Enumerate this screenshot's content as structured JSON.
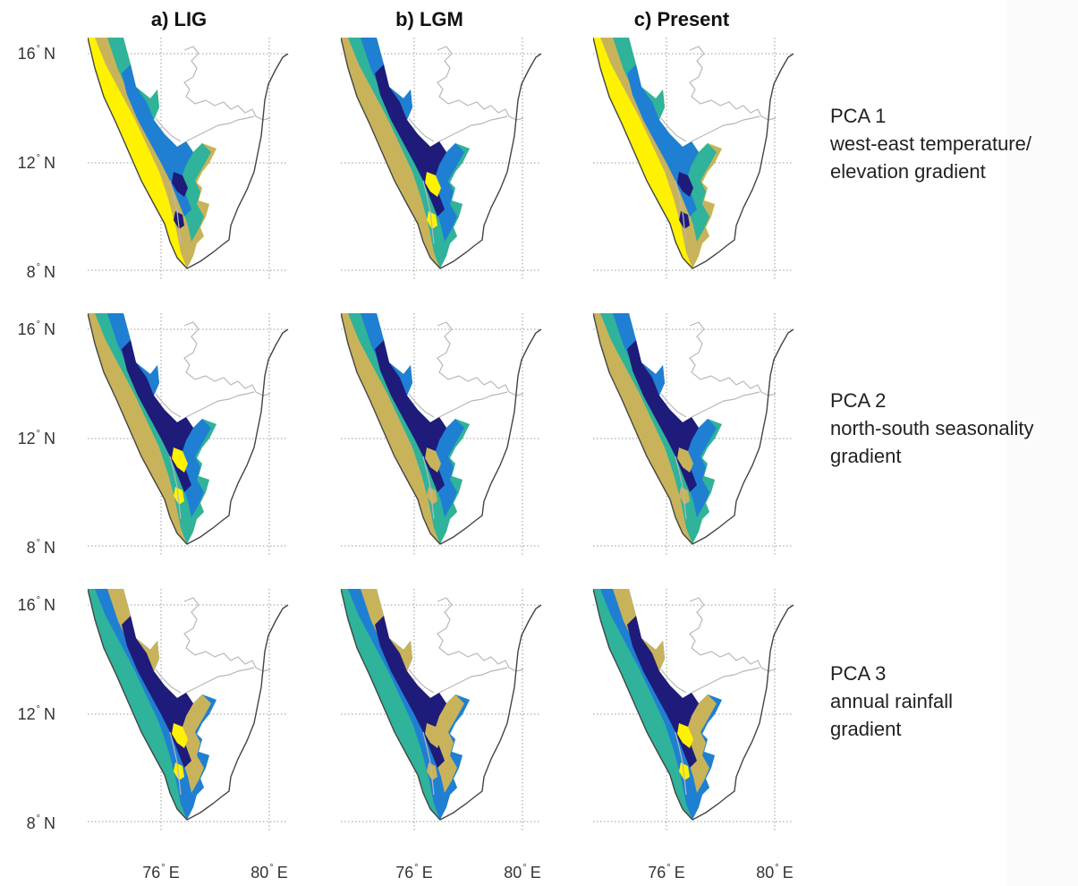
{
  "column_titles": [
    "a) LIG",
    "b) LGM",
    "c) Present"
  ],
  "lat_labels": [
    {
      "deg": "16",
      "hem": "N"
    },
    {
      "deg": "12",
      "hem": "N"
    },
    {
      "deg": "8",
      "hem": "N"
    }
  ],
  "lon_labels": [
    {
      "deg": "76",
      "hem": "E"
    },
    {
      "deg": "80",
      "hem": "E"
    }
  ],
  "rows": [
    {
      "title": "PCA 1",
      "desc_lines": [
        "west-east temperature/",
        "elevation gradient"
      ]
    },
    {
      "title": "PCA 2",
      "desc_lines": [
        "north-south seasonality",
        "gradient"
      ]
    },
    {
      "title": "PCA 3",
      "desc_lines": [
        "annual rainfall",
        "gradient"
      ]
    }
  ],
  "palette": {
    "class_1": "#fff200",
    "class_2": "#c9b35a",
    "class_3": "#2fb39a",
    "class_4": "#1f7fd3",
    "class_5": "#1e1b7a",
    "coastline": "#444444",
    "state_boundary": "#b8b8b8",
    "graticule": "#9a9a9a"
  },
  "panels": [
    [
      {
        "bands": [
          "class_1",
          "class_2",
          "class_3",
          "class_4",
          "class_5"
        ]
      },
      {
        "bands": [
          "class_2",
          "class_3",
          "class_4",
          "class_5",
          "class_1"
        ]
      },
      {
        "bands": [
          "class_1",
          "class_2",
          "class_3",
          "class_4",
          "class_5"
        ]
      }
    ],
    [
      {
        "bands": [
          "class_2",
          "class_3",
          "class_4",
          "class_5",
          "class_1"
        ]
      },
      {
        "bands": [
          "class_2",
          "class_3",
          "class_4",
          "class_5",
          "class_2"
        ]
      },
      {
        "bands": [
          "class_2",
          "class_3",
          "class_4",
          "class_5",
          "class_2"
        ]
      }
    ],
    [
      {
        "bands": [
          "class_3",
          "class_4",
          "class_2",
          "class_5",
          "class_1"
        ]
      },
      {
        "bands": [
          "class_3",
          "class_4",
          "class_2",
          "class_5",
          "class_2"
        ]
      },
      {
        "bands": [
          "class_3",
          "class_4",
          "class_2",
          "class_5",
          "class_1"
        ]
      }
    ]
  ]
}
